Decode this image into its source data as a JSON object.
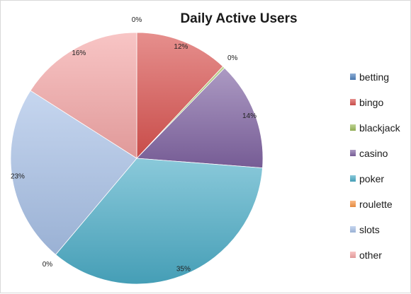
{
  "chart_data": {
    "type": "pie",
    "title": "Daily Active Users",
    "legend_position": "right",
    "categories": [
      "betting",
      "bingo",
      "blackjack",
      "casino",
      "poker",
      "roulette",
      "slots",
      "other"
    ],
    "values": [
      0,
      12,
      0.3,
      14,
      35,
      0,
      23,
      16
    ],
    "value_labels": [
      "0%",
      "12%",
      "0%",
      "14%",
      "35%",
      "0%",
      "23%",
      "16%"
    ],
    "colors": [
      "#4f81bd",
      "#d9534f",
      "#9bbb59",
      "#8064a2",
      "#4bacc6",
      "#f79646",
      "#a7c0e6",
      "#f4a6a6"
    ],
    "label_series_index": [
      0,
      1,
      2,
      3,
      4,
      5,
      6,
      7
    ]
  }
}
